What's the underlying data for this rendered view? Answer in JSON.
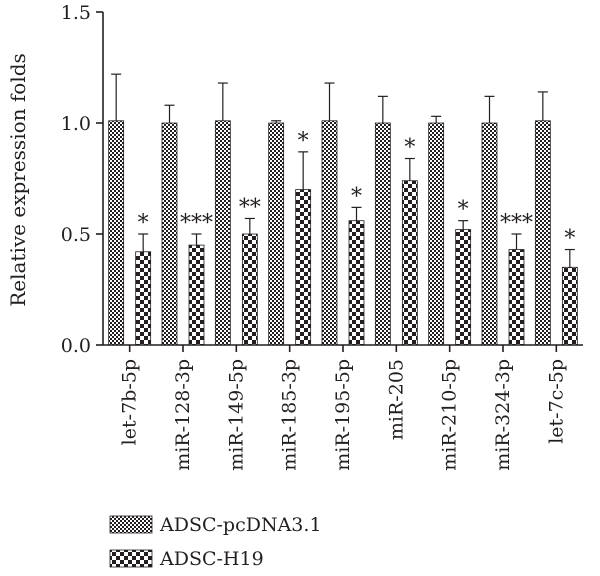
{
  "chart_data": {
    "type": "bar",
    "ylabel": "Relative expression folds",
    "ylim": [
      0,
      1.5
    ],
    "yticks": [
      "0.0",
      "0.5",
      "1.0",
      "1.5"
    ],
    "categories": [
      "let-7b-5p",
      "miR-128-3p",
      "miR-149-5p",
      "miR-185-3p",
      "miR-195-5p",
      "miR-205",
      "miR-210-5p",
      "miR-324-3p",
      "let-7c-5p"
    ],
    "series": [
      {
        "name": "ADSC-pcDNA3.1",
        "pattern": "fine-checker",
        "values": [
          1.01,
          1.0,
          1.01,
          1.0,
          1.01,
          1.0,
          1.0,
          1.0,
          1.01
        ],
        "errors": [
          0.21,
          0.08,
          0.17,
          0.01,
          0.17,
          0.12,
          0.03,
          0.12,
          0.13
        ]
      },
      {
        "name": "ADSC-H19",
        "pattern": "coarse-checker",
        "values": [
          0.42,
          0.45,
          0.5,
          0.7,
          0.56,
          0.74,
          0.52,
          0.43,
          0.35
        ],
        "errors": [
          0.08,
          0.05,
          0.07,
          0.17,
          0.06,
          0.1,
          0.04,
          0.07,
          0.08
        ]
      }
    ],
    "significance": [
      "*",
      "***",
      "**",
      "*",
      "*",
      "*",
      "*",
      "***",
      "*"
    ],
    "legend_position": "bottom-left"
  }
}
